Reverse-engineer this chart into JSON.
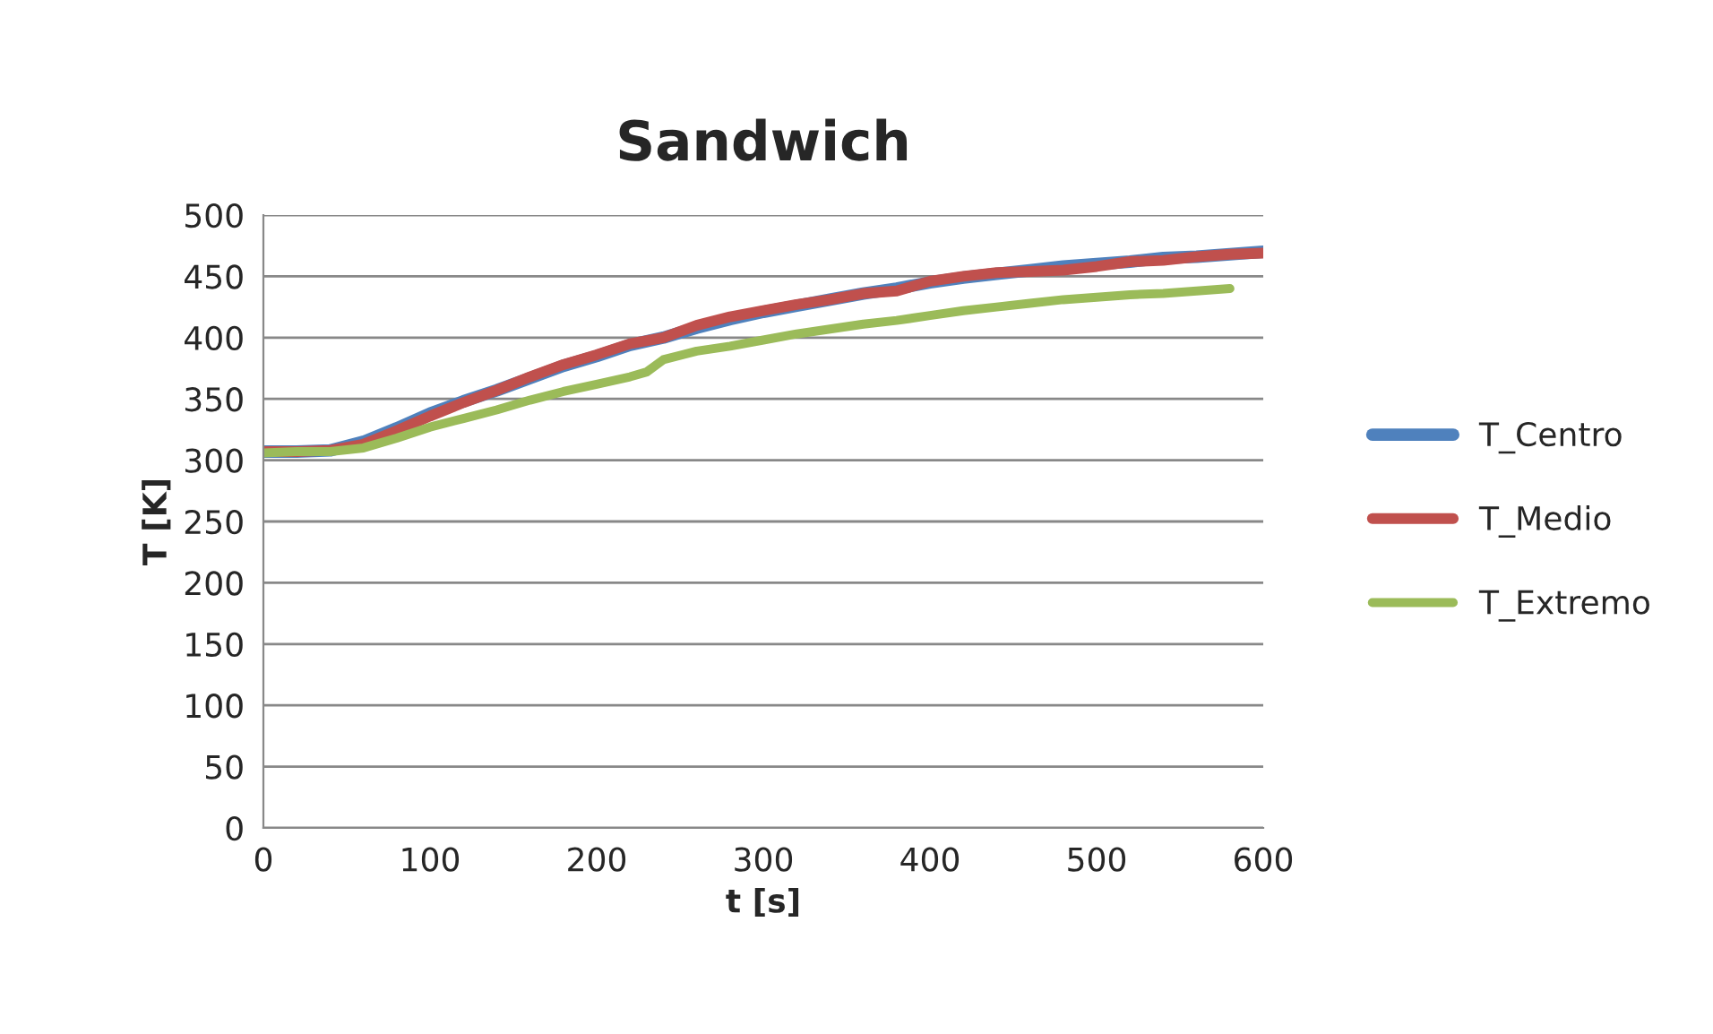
{
  "chart_data": {
    "type": "line",
    "title": "Sandwich",
    "xlabel": "t [s]",
    "ylabel": "T [K]",
    "xlim": [
      0,
      600
    ],
    "xticks": [
      0,
      100,
      200,
      300,
      400,
      500,
      600
    ],
    "ylim": [
      0,
      500
    ],
    "yticks": [
      0,
      50,
      100,
      150,
      200,
      250,
      300,
      350,
      400,
      450,
      500
    ],
    "grid": "y",
    "legend": "right",
    "marker": "none",
    "line_style": "solid",
    "series": [
      {
        "name": "T_Centro",
        "color": "#4f81bd",
        "x": [
          0,
          20,
          40,
          60,
          80,
          100,
          120,
          140,
          160,
          180,
          200,
          220,
          240,
          260,
          280,
          300,
          320,
          340,
          360,
          380,
          400,
          420,
          440,
          460,
          480,
          500,
          520,
          540,
          560,
          580,
          600
        ],
        "values": [
          307,
          307,
          308,
          315,
          326,
          338,
          348,
          357,
          367,
          377,
          385,
          394,
          400,
          408,
          415,
          421,
          426,
          431,
          436,
          440,
          445,
          449,
          452,
          455,
          458,
          460,
          462,
          465,
          466,
          468,
          470
        ]
      },
      {
        "name": "T_Medio",
        "color": "#c0504d",
        "x": [
          0,
          20,
          40,
          60,
          80,
          100,
          120,
          140,
          160,
          180,
          200,
          220,
          240,
          260,
          280,
          300,
          320,
          340,
          360,
          380,
          400,
          420,
          440,
          460,
          480,
          500,
          520,
          540,
          560,
          580,
          600
        ],
        "values": [
          307,
          307,
          308,
          313,
          324,
          336,
          347,
          357,
          368,
          378,
          386,
          395,
          400,
          410,
          417,
          422,
          427,
          431,
          436,
          438,
          446,
          450,
          453,
          454,
          455,
          458,
          462,
          463,
          466,
          468,
          469
        ]
      },
      {
        "name": "T_Extremo",
        "color": "#9bbb59",
        "x": [
          0,
          20,
          40,
          60,
          80,
          100,
          120,
          140,
          160,
          180,
          200,
          220,
          230,
          240,
          260,
          280,
          300,
          320,
          340,
          360,
          380,
          400,
          420,
          440,
          460,
          480,
          500,
          520,
          540,
          560,
          580
        ],
        "values": [
          306,
          307,
          307,
          310,
          318,
          327,
          334,
          341,
          349,
          356,
          362,
          368,
          372,
          382,
          389,
          393,
          398,
          403,
          407,
          411,
          414,
          418,
          422,
          425,
          428,
          431,
          433,
          435,
          436,
          438,
          440
        ]
      }
    ]
  }
}
